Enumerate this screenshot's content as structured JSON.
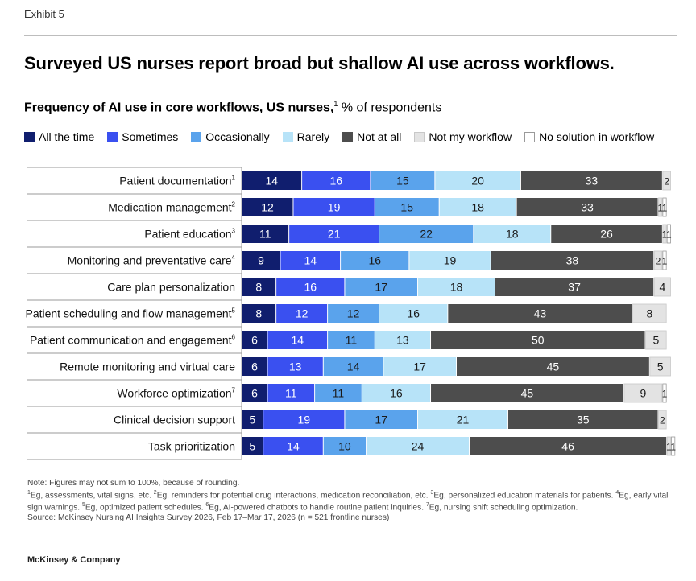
{
  "exhibit": "Exhibit 5",
  "title": "Surveyed US nurses report broad but shallow AI use across workflows.",
  "subtitle": {
    "bold": "Frequency of AI use in core workflows, US nurses,",
    "sup": "1",
    "rest": " % of respondents"
  },
  "legend": [
    {
      "label": "All the time",
      "color": "#101e6e",
      "border": "#101e6e"
    },
    {
      "label": "Sometimes",
      "color": "#3a50f0",
      "border": "#3a50f0"
    },
    {
      "label": "Occasionally",
      "color": "#5aa3ec",
      "border": "#5aa3ec"
    },
    {
      "label": "Rarely",
      "color": "#b7e3f8",
      "border": "#b7e3f8"
    },
    {
      "label": "Not at all",
      "color": "#4d4d4d",
      "border": "#4d4d4d"
    },
    {
      "label": "Not my workflow",
      "color": "#e3e3e3",
      "border": "#c8c8c8"
    },
    {
      "label": "No solution in workflow",
      "color": "#ffffff",
      "border": "#9a9a9a"
    }
  ],
  "chart_data": {
    "type": "bar",
    "orientation": "horizontal-stacked",
    "unit": "% of respondents",
    "categories": [
      {
        "label": "Patient documentation",
        "sup": "1"
      },
      {
        "label": "Medication management",
        "sup": "2"
      },
      {
        "label": "Patient education",
        "sup": "3"
      },
      {
        "label": "Monitoring and preventative care",
        "sup": "4"
      },
      {
        "label": "Care plan personalization",
        "sup": ""
      },
      {
        "label": "Patient scheduling and flow management",
        "sup": "5"
      },
      {
        "label": "Patient communication and engagement",
        "sup": "6"
      },
      {
        "label": "Remote monitoring and virtual care",
        "sup": ""
      },
      {
        "label": "Workforce optimization",
        "sup": "7"
      },
      {
        "label": "Clinical decision support",
        "sup": ""
      },
      {
        "label": "Task prioritization",
        "sup": ""
      }
    ],
    "series": [
      {
        "name": "All the time",
        "values": [
          14,
          12,
          11,
          9,
          8,
          8,
          6,
          6,
          6,
          5,
          5
        ]
      },
      {
        "name": "Sometimes",
        "values": [
          16,
          19,
          21,
          14,
          16,
          12,
          14,
          13,
          11,
          19,
          14
        ]
      },
      {
        "name": "Occasionally",
        "values": [
          15,
          15,
          22,
          16,
          17,
          12,
          11,
          14,
          11,
          17,
          10
        ]
      },
      {
        "name": "Rarely",
        "values": [
          20,
          18,
          18,
          19,
          18,
          16,
          13,
          17,
          16,
          21,
          24
        ]
      },
      {
        "name": "Not at all",
        "values": [
          33,
          33,
          26,
          38,
          37,
          43,
          50,
          45,
          45,
          35,
          46
        ]
      },
      {
        "name": "Not my workflow",
        "values": [
          2,
          1,
          1,
          2,
          4,
          8,
          5,
          5,
          9,
          2,
          1
        ]
      },
      {
        "name": "No solution in workflow",
        "values": [
          0,
          1,
          1,
          1,
          0,
          0,
          0,
          0,
          1,
          0,
          1
        ]
      }
    ],
    "label_colors": [
      "#ffffff",
      "#ffffff",
      "#1a1a1a",
      "#1a1a1a",
      "#ffffff",
      "#1a1a1a",
      "#1a1a1a"
    ]
  },
  "notes": {
    "line1": "Note: Figures may not sum to 100%, because of rounding.",
    "footnotes": [
      {
        "sup": "1",
        "text": "Eg, assessments, vital signs, etc. "
      },
      {
        "sup": "2",
        "text": "Eg, reminders for potential drug interactions, medication reconciliation, etc. "
      },
      {
        "sup": "3",
        "text": "Eg, personalized education materials for patients. "
      },
      {
        "sup": "4",
        "text": "Eg, early vital sign warnings. "
      },
      {
        "sup": "5",
        "text": "Eg, optimized patient schedules. "
      },
      {
        "sup": "6",
        "text": "Eg, AI-powered chatbots to handle routine patient inquiries. "
      },
      {
        "sup": "7",
        "text": "Eg, nursing shift scheduling optimization."
      }
    ],
    "source": "Source: McKinsey Nursing AI Insights Survey 2026, Feb 17–Mar 17, 2026 (n = 521 frontline nurses)"
  },
  "brand": "McKinsey & Company"
}
